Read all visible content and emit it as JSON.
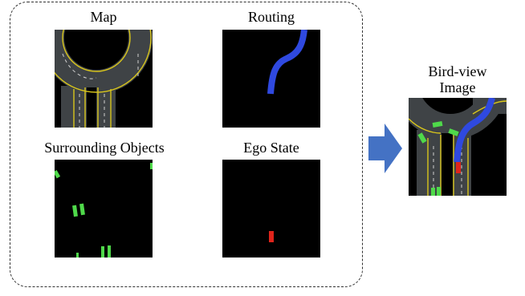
{
  "panels": {
    "map": {
      "title": "Map"
    },
    "routing": {
      "title": "Routing"
    },
    "surrounding": {
      "title": "Surrounding Objects"
    },
    "ego": {
      "title": "Ego State"
    }
  },
  "output": {
    "title_line1": "Bird-view",
    "title_line2": "Image"
  },
  "colors": {
    "road": "#3f4346",
    "lane_line": "#d9c61b",
    "route": "#2f49e0",
    "objects": "#4fd94a",
    "ego": "#e0241b",
    "arrow": "#4472c4"
  }
}
